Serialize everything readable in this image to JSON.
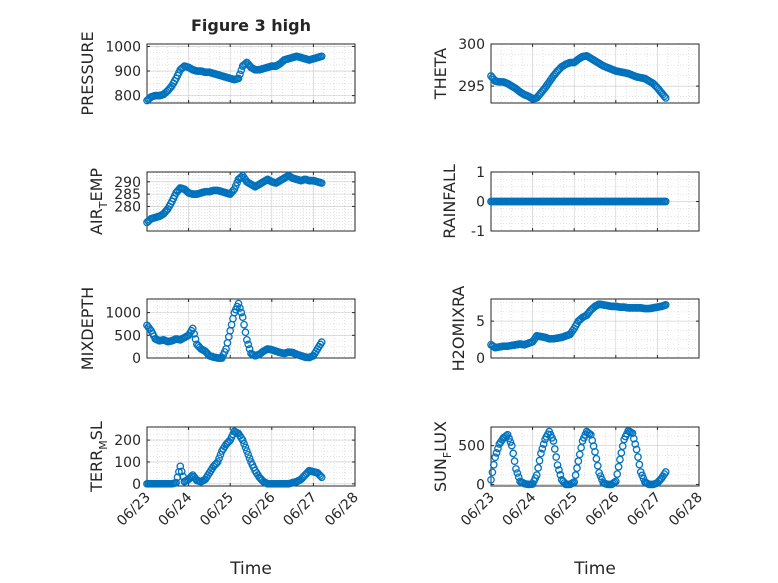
{
  "figure": {
    "title": "Figure 3 high",
    "marker_color": "#0072BD",
    "xlabel": "Time"
  },
  "chart_data": [
    {
      "type": "scatter",
      "ylabel": "PRESSURE",
      "ylim": [
        770,
        1010
      ],
      "yticks": [
        800,
        900,
        1000
      ],
      "xlim": [
        "06/23",
        "06/28"
      ],
      "xticks": [
        "06/23",
        "06/24",
        "06/25",
        "06/26",
        "06/27",
        "06/28"
      ],
      "series": [
        {
          "x": [
            0.0,
            0.1,
            0.2,
            0.3,
            0.4,
            0.5,
            0.6,
            0.7,
            0.8,
            0.9,
            1.0,
            1.1,
            1.2,
            1.3,
            1.4,
            1.5,
            1.6,
            1.7,
            1.8,
            1.9,
            2.0,
            2.1,
            2.2,
            2.3,
            2.4,
            2.5,
            2.6,
            2.7,
            2.8,
            2.9,
            3.0,
            3.1,
            3.2,
            3.3,
            3.4,
            3.5,
            3.6,
            3.7,
            3.8,
            3.9,
            4.0,
            4.1,
            4.2
          ],
          "y": [
            780,
            795,
            800,
            800,
            805,
            820,
            840,
            870,
            905,
            920,
            915,
            905,
            900,
            900,
            895,
            895,
            890,
            885,
            880,
            875,
            870,
            865,
            870,
            920,
            935,
            915,
            905,
            905,
            910,
            915,
            920,
            920,
            930,
            945,
            950,
            955,
            960,
            955,
            950,
            945,
            950,
            955,
            960
          ]
        }
      ]
    },
    {
      "type": "scatter",
      "ylabel": "THETA",
      "ylim": [
        293,
        300
      ],
      "yticks": [
        295,
        300
      ],
      "xlim": [
        "06/23",
        "06/28"
      ],
      "xticks": [
        "06/23",
        "06/24",
        "06/25",
        "06/26",
        "06/27",
        "06/28"
      ],
      "series": [
        {
          "x": [
            0.0,
            0.1,
            0.2,
            0.3,
            0.4,
            0.5,
            0.6,
            0.7,
            0.8,
            0.9,
            1.0,
            1.1,
            1.2,
            1.3,
            1.4,
            1.5,
            1.6,
            1.7,
            1.8,
            1.9,
            2.0,
            2.1,
            2.2,
            2.3,
            2.4,
            2.5,
            2.6,
            2.7,
            2.8,
            2.9,
            3.0,
            3.1,
            3.2,
            3.3,
            3.4,
            3.5,
            3.6,
            3.7,
            3.8,
            3.9,
            4.0,
            4.1,
            4.2
          ],
          "y": [
            296.2,
            295.6,
            295.5,
            295.5,
            295.3,
            295.0,
            294.7,
            294.3,
            294.0,
            293.8,
            293.5,
            293.6,
            294.2,
            294.8,
            295.5,
            296.2,
            296.8,
            297.3,
            297.6,
            297.8,
            297.8,
            298.2,
            298.5,
            298.6,
            298.3,
            298.0,
            297.7,
            297.4,
            297.2,
            297.0,
            296.8,
            296.7,
            296.6,
            296.5,
            296.3,
            296.1,
            296.0,
            295.9,
            295.6,
            295.3,
            294.8,
            294.2,
            293.6
          ]
        }
      ]
    },
    {
      "type": "scatter",
      "ylabel": "AIR_TEMP",
      "ylim": [
        270,
        294
      ],
      "yticks": [
        280,
        285,
        290
      ],
      "xlim": [
        "06/23",
        "06/28"
      ],
      "xticks": [
        "06/23",
        "06/24",
        "06/25",
        "06/26",
        "06/27",
        "06/28"
      ],
      "series": [
        {
          "x": [
            0.0,
            0.1,
            0.2,
            0.3,
            0.4,
            0.5,
            0.6,
            0.7,
            0.8,
            0.9,
            1.0,
            1.1,
            1.2,
            1.3,
            1.4,
            1.5,
            1.6,
            1.7,
            1.8,
            1.9,
            2.0,
            2.1,
            2.2,
            2.3,
            2.4,
            2.5,
            2.6,
            2.7,
            2.8,
            2.9,
            3.0,
            3.1,
            3.2,
            3.3,
            3.4,
            3.5,
            3.6,
            3.7,
            3.8,
            3.9,
            4.0,
            4.1,
            4.2
          ],
          "y": [
            273.5,
            275.0,
            275.5,
            276.0,
            277.0,
            279.0,
            282.0,
            285.5,
            287.5,
            287.0,
            285.5,
            285.0,
            285.0,
            285.5,
            286.0,
            286.0,
            286.5,
            286.5,
            286.0,
            285.5,
            285.0,
            287.0,
            291.0,
            292.5,
            290.0,
            289.0,
            288.0,
            289.0,
            290.0,
            291.0,
            290.0,
            289.5,
            290.5,
            291.5,
            292.5,
            291.5,
            291.0,
            290.5,
            291.0,
            290.5,
            290.5,
            290.0,
            289.5
          ]
        }
      ]
    },
    {
      "type": "scatter",
      "ylabel": "RAINFALL",
      "ylim": [
        -1,
        1
      ],
      "yticks": [
        -1,
        0,
        1
      ],
      "xlim": [
        "06/23",
        "06/28"
      ],
      "xticks": [
        "06/23",
        "06/24",
        "06/25",
        "06/26",
        "06/27",
        "06/28"
      ],
      "series": [
        {
          "x": [
            0.0,
            0.1,
            0.2,
            0.3,
            0.4,
            0.5,
            0.6,
            0.7,
            0.8,
            0.9,
            1.0,
            1.1,
            1.2,
            1.3,
            1.4,
            1.5,
            1.6,
            1.7,
            1.8,
            1.9,
            2.0,
            2.1,
            2.2,
            2.3,
            2.4,
            2.5,
            2.6,
            2.7,
            2.8,
            2.9,
            3.0,
            3.1,
            3.2,
            3.3,
            3.4,
            3.5,
            3.6,
            3.7,
            3.8,
            3.9,
            4.0,
            4.1,
            4.2
          ],
          "y": [
            0,
            0,
            0,
            0,
            0,
            0,
            0,
            0,
            0,
            0,
            0,
            0,
            0,
            0,
            0,
            0,
            0,
            0,
            0,
            0,
            0,
            0,
            0,
            0,
            0,
            0,
            0,
            0,
            0,
            0,
            0,
            0,
            0,
            0,
            0,
            0,
            0,
            0,
            0,
            0,
            0,
            0,
            0
          ]
        }
      ]
    },
    {
      "type": "scatter",
      "ylabel": "MIXDEPTH",
      "ylim": [
        0,
        1300
      ],
      "yticks": [
        0,
        500,
        1000
      ],
      "xlim": [
        "06/23",
        "06/28"
      ],
      "xticks": [
        "06/23",
        "06/24",
        "06/25",
        "06/26",
        "06/27",
        "06/28"
      ],
      "series": [
        {
          "x": [
            0.0,
            0.1,
            0.2,
            0.3,
            0.4,
            0.5,
            0.6,
            0.7,
            0.8,
            0.9,
            1.0,
            1.1,
            1.2,
            1.3,
            1.4,
            1.5,
            1.6,
            1.7,
            1.8,
            1.9,
            2.0,
            2.1,
            2.2,
            2.3,
            2.4,
            2.5,
            2.6,
            2.7,
            2.8,
            2.9,
            3.0,
            3.1,
            3.2,
            3.3,
            3.4,
            3.5,
            3.6,
            3.7,
            3.8,
            3.9,
            4.0,
            4.1,
            4.2
          ],
          "y": [
            720,
            600,
            420,
            380,
            400,
            360,
            380,
            420,
            400,
            450,
            500,
            650,
            300,
            200,
            150,
            50,
            20,
            0,
            0,
            200,
            600,
            1000,
            1200,
            900,
            400,
            100,
            50,
            80,
            150,
            200,
            180,
            150,
            120,
            100,
            130,
            120,
            80,
            50,
            20,
            10,
            50,
            200,
            350
          ]
        }
      ]
    },
    {
      "type": "scatter",
      "ylabel": "H2OMIXRA",
      "ylim": [
        0,
        8
      ],
      "yticks": [
        0,
        5
      ],
      "xlim": [
        "06/23",
        "06/28"
      ],
      "xticks": [
        "06/23",
        "06/24",
        "06/25",
        "06/26",
        "06/27",
        "06/28"
      ],
      "series": [
        {
          "x": [
            0.0,
            0.1,
            0.2,
            0.3,
            0.4,
            0.5,
            0.6,
            0.7,
            0.8,
            0.9,
            1.0,
            1.1,
            1.2,
            1.3,
            1.4,
            1.5,
            1.6,
            1.7,
            1.8,
            1.9,
            2.0,
            2.1,
            2.2,
            2.3,
            2.4,
            2.5,
            2.6,
            2.7,
            2.8,
            2.9,
            3.0,
            3.1,
            3.2,
            3.3,
            3.4,
            3.5,
            3.6,
            3.7,
            3.8,
            3.9,
            4.0,
            4.1,
            4.2
          ],
          "y": [
            1.8,
            1.4,
            1.5,
            1.6,
            1.6,
            1.7,
            1.8,
            1.9,
            1.8,
            2.0,
            2.2,
            3.0,
            2.9,
            2.8,
            2.6,
            2.6,
            2.7,
            2.8,
            3.0,
            3.2,
            4.0,
            5.0,
            5.5,
            5.8,
            6.5,
            7.0,
            7.3,
            7.2,
            7.1,
            7.0,
            7.0,
            6.9,
            6.9,
            6.8,
            6.8,
            6.8,
            6.8,
            6.7,
            6.7,
            6.8,
            6.9,
            7.0,
            7.2
          ]
        }
      ]
    },
    {
      "type": "scatter",
      "ylabel": "TERR_MSL",
      "ylim": [
        -10,
        260
      ],
      "yticks": [
        0,
        100,
        200
      ],
      "xlim": [
        "06/23",
        "06/28"
      ],
      "xticks": [
        "06/23",
        "06/24",
        "06/25",
        "06/26",
        "06/27",
        "06/28"
      ],
      "series": [
        {
          "x": [
            0.0,
            0.1,
            0.2,
            0.3,
            0.4,
            0.5,
            0.6,
            0.7,
            0.8,
            0.9,
            1.0,
            1.1,
            1.2,
            1.3,
            1.4,
            1.5,
            1.6,
            1.7,
            1.8,
            1.9,
            2.0,
            2.1,
            2.2,
            2.3,
            2.4,
            2.5,
            2.6,
            2.7,
            2.8,
            2.9,
            3.0,
            3.1,
            3.2,
            3.3,
            3.4,
            3.5,
            3.6,
            3.7,
            3.8,
            3.9,
            4.0,
            4.1,
            4.2
          ],
          "y": [
            0,
            0,
            0,
            0,
            0,
            0,
            0,
            5,
            80,
            10,
            20,
            40,
            15,
            10,
            20,
            50,
            80,
            100,
            150,
            180,
            200,
            240,
            230,
            200,
            150,
            100,
            60,
            30,
            10,
            0,
            0,
            0,
            0,
            0,
            0,
            5,
            10,
            20,
            40,
            60,
            55,
            50,
            30
          ]
        }
      ]
    },
    {
      "type": "scatter",
      "ylabel": "SUN_FLUX",
      "ylim": [
        -20,
        740
      ],
      "yticks": [
        0,
        500
      ],
      "xlim": [
        "06/23",
        "06/28"
      ],
      "xticks": [
        "06/23",
        "06/24",
        "06/25",
        "06/26",
        "06/27",
        "06/28"
      ],
      "series": [
        {
          "x": [
            0.0,
            0.1,
            0.2,
            0.3,
            0.4,
            0.5,
            0.6,
            0.7,
            0.8,
            0.9,
            1.0,
            1.1,
            1.2,
            1.3,
            1.4,
            1.5,
            1.6,
            1.7,
            1.8,
            1.9,
            2.0,
            2.1,
            2.2,
            2.3,
            2.4,
            2.5,
            2.6,
            2.7,
            2.8,
            2.9,
            3.0,
            3.1,
            3.2,
            3.3,
            3.4,
            3.5,
            3.6,
            3.7,
            3.8,
            3.9,
            4.0,
            4.1,
            4.2
          ],
          "y": [
            60,
            350,
            520,
            600,
            640,
            500,
            200,
            40,
            10,
            0,
            5,
            120,
            400,
            580,
            680,
            560,
            250,
            60,
            0,
            0,
            30,
            300,
            560,
            680,
            640,
            420,
            150,
            20,
            0,
            0,
            40,
            320,
            580,
            690,
            660,
            450,
            160,
            30,
            0,
            0,
            20,
            80,
            160
          ]
        }
      ]
    }
  ]
}
